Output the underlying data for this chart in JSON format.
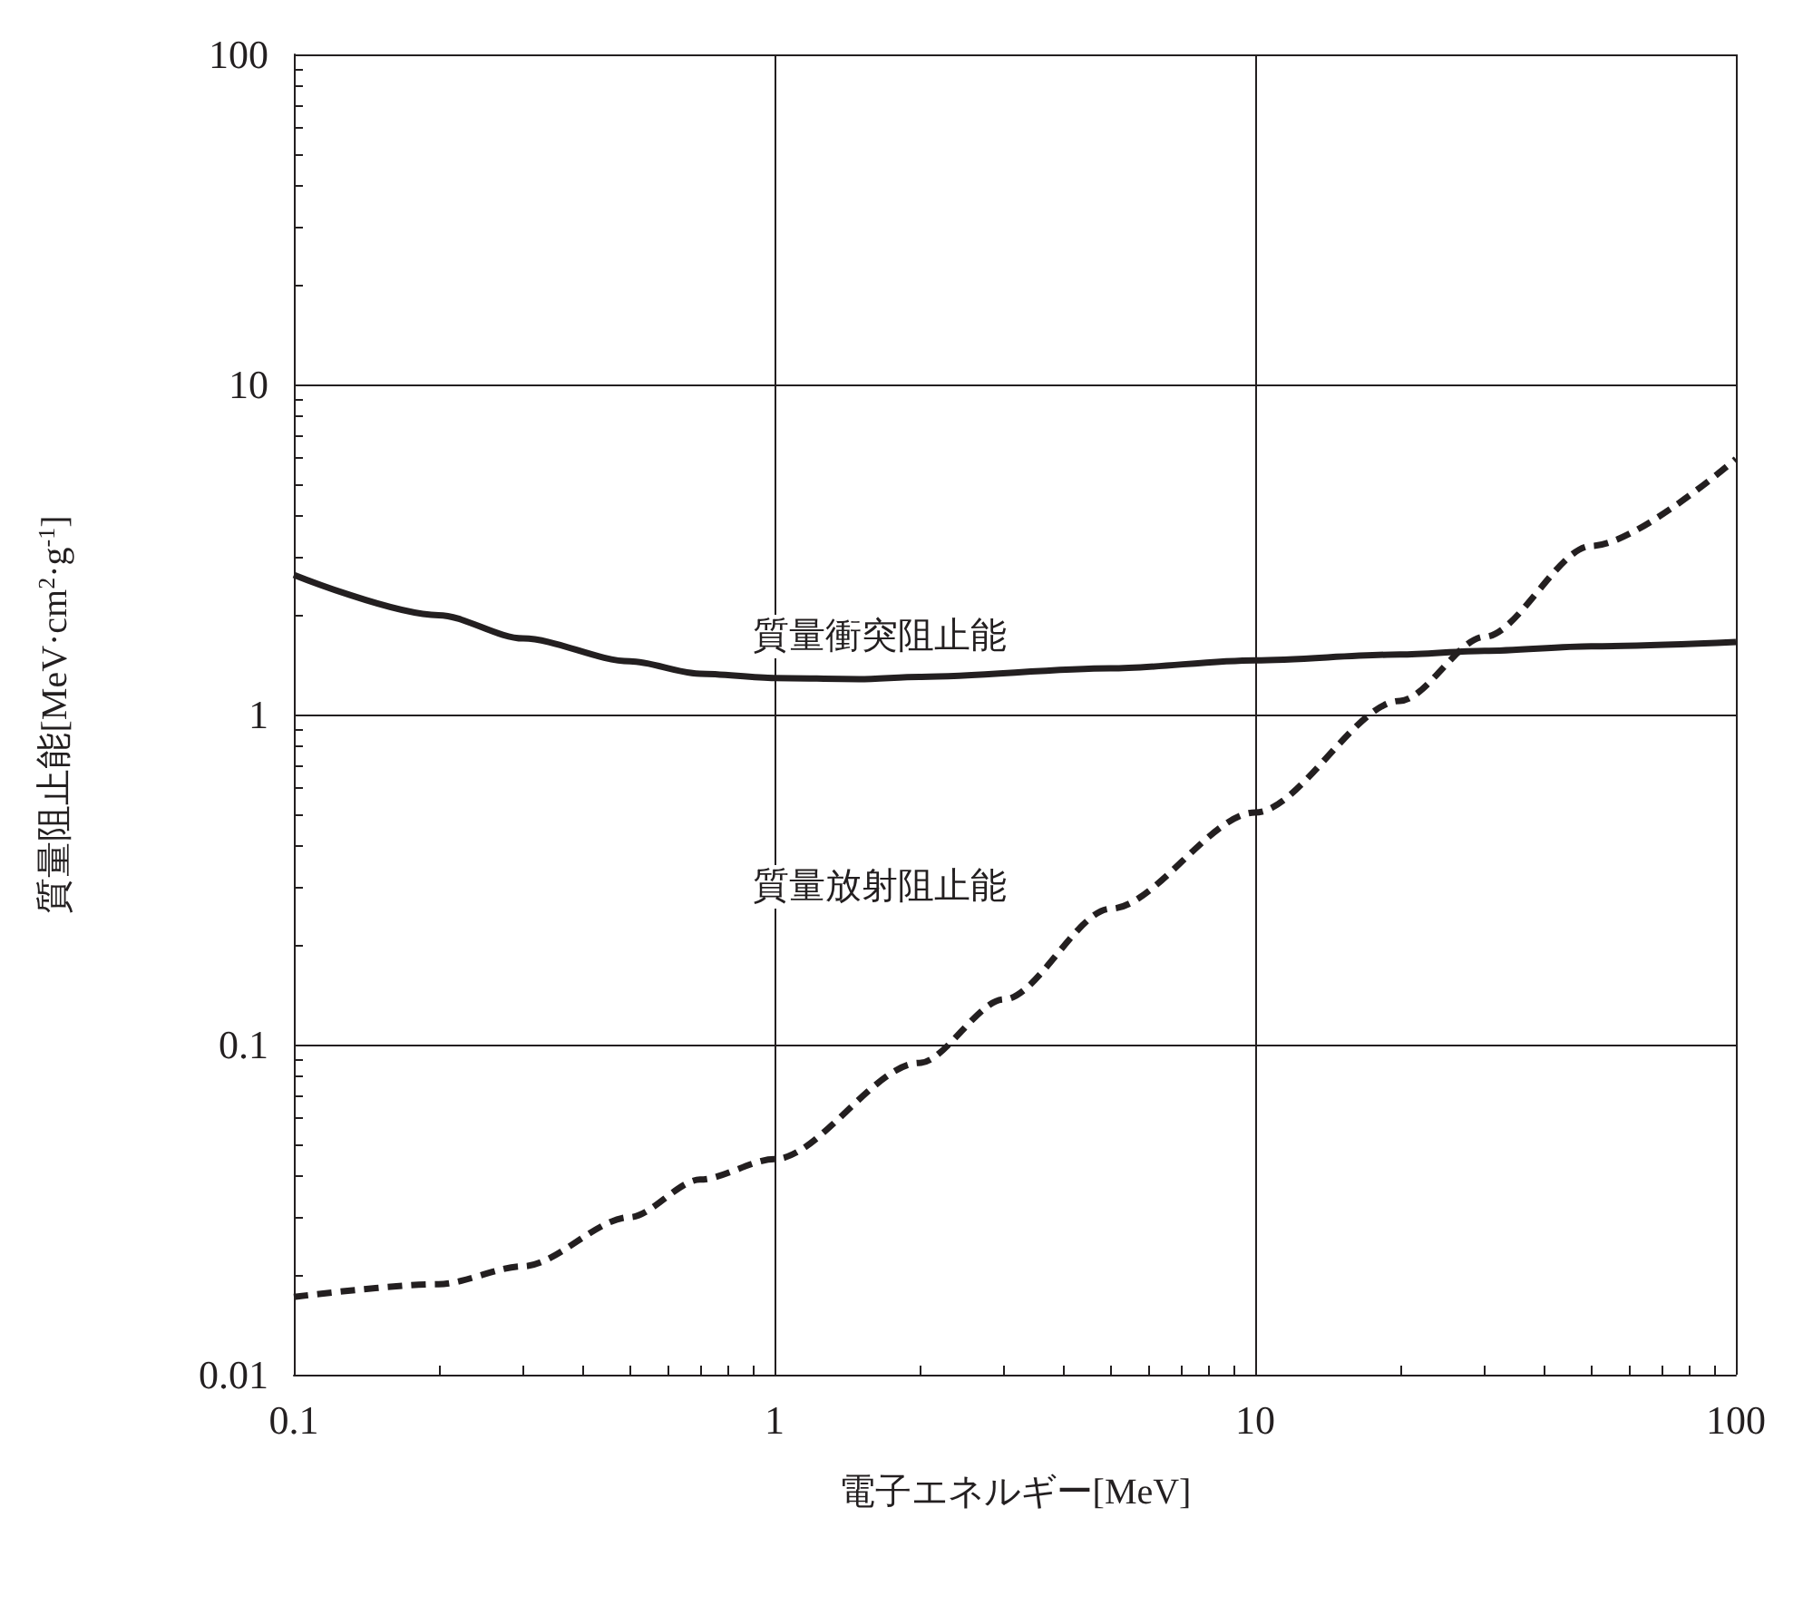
{
  "chart_data": {
    "type": "line",
    "xlabel": "電子エネルギー[MeV]",
    "ylabel": "質量阻止能[MeV·cm$^{2}$·g$^{-1}$]",
    "log": "xy",
    "xlim": [
      0.1,
      100
    ],
    "ylim": [
      0.01,
      100
    ],
    "xticks": [
      0.1,
      1,
      10,
      100
    ],
    "yticks": [
      0.01,
      0.1,
      1,
      10,
      100
    ],
    "grid": true,
    "marker": "none",
    "series": [
      {
        "color": "#231f20",
        "line_style": "solid",
        "x": [
          0.1,
          0.2,
          0.3,
          0.5,
          0.7,
          1,
          1.5,
          2,
          5,
          10,
          20,
          30,
          50,
          100
        ],
        "values": [
          2.65,
          2.0,
          1.7,
          1.45,
          1.33,
          1.29,
          1.28,
          1.3,
          1.38,
          1.46,
          1.52,
          1.56,
          1.61,
          1.66
        ]
      },
      {
        "color": "#231f20",
        "line_style": "dashed",
        "x": [
          0.1,
          0.2,
          0.3,
          0.5,
          0.7,
          1,
          2,
          3,
          5,
          10,
          20,
          30,
          50,
          100
        ],
        "values": [
          0.0172,
          0.0188,
          0.0213,
          0.03,
          0.039,
          0.045,
          0.088,
          0.137,
          0.258,
          0.505,
          1.1,
          1.72,
          3.24,
          5.95
        ]
      }
    ],
    "annotations": [
      "質量衝突阻止能",
      "質量放射阻止能"
    ]
  }
}
